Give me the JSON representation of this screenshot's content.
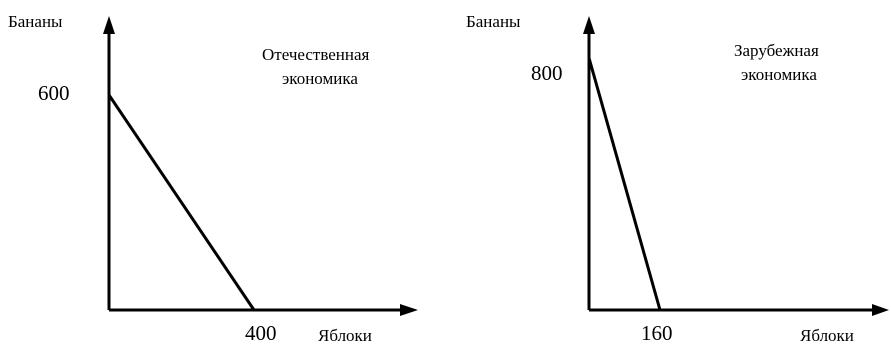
{
  "chart_data": [
    {
      "type": "line",
      "panel": "home",
      "ylabel": "Бананы",
      "xlabel": "Яблоки",
      "annotation": [
        "Отечественная",
        "экономика"
      ],
      "x": [
        0,
        400
      ],
      "y": [
        600,
        0
      ],
      "x_ticks": [
        "400"
      ],
      "y_ticks": [
        "600"
      ],
      "grid": false,
      "line_color": "#000000"
    },
    {
      "type": "line",
      "panel": "foreign",
      "ylabel": "Бананы",
      "xlabel": "Яблоки",
      "annotation": [
        "Зарубежная",
        "экономика"
      ],
      "x": [
        0,
        160
      ],
      "y": [
        800,
        0
      ],
      "x_ticks": [
        "160"
      ],
      "y_ticks": [
        "800"
      ],
      "grid": false,
      "line_color": "#000000"
    }
  ]
}
